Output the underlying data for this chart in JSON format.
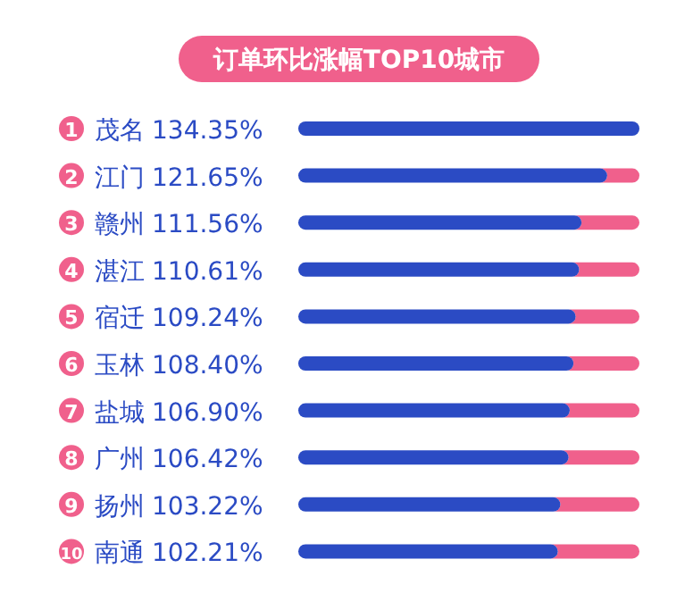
{
  "chart_data": {
    "type": "bar",
    "orientation": "horizontal",
    "title": "订单环比涨幅TOP10城市",
    "categories": [
      "茂名",
      "江门",
      "赣州",
      "湛江",
      "宿迁",
      "玉林",
      "盐城",
      "广州",
      "扬州",
      "南通"
    ],
    "values": [
      134.35,
      121.65,
      111.56,
      110.61,
      109.24,
      108.4,
      106.9,
      106.42,
      103.22,
      102.21
    ],
    "value_labels": [
      "134.35%",
      "121.65%",
      "111.56%",
      "110.61%",
      "109.24%",
      "108.40%",
      "106.90%",
      "106.42%",
      "103.22%",
      "102.21%"
    ],
    "color": "#2b4bc4",
    "annotations": [
      "1",
      "2",
      "3",
      "4",
      "5",
      "6",
      "7",
      "8",
      "9",
      "10"
    ]
  }
}
